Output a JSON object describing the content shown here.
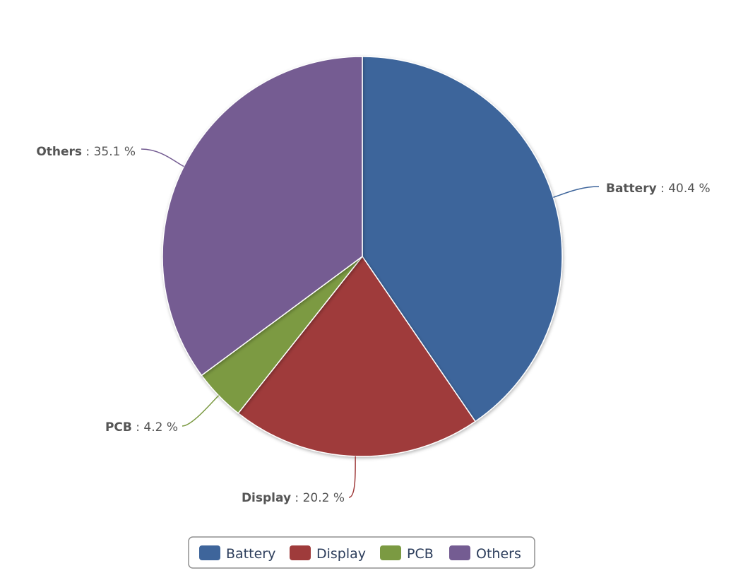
{
  "chart_data": {
    "type": "pie",
    "title": "",
    "categories": [
      "Battery",
      "Display",
      "PCB",
      "Others"
    ],
    "values": [
      40.4,
      20.2,
      4.2,
      35.1
    ],
    "value_labels": [
      "40.4 %",
      "20.2 %",
      "4.2 %",
      "35.1 %"
    ],
    "unit": "%",
    "colors": [
      "#3e659b",
      "#9f3b3b",
      "#7b9a42",
      "#745c92"
    ],
    "start_angle_deg": 0,
    "direction": "clockwise",
    "legend": {
      "position": "bottom-center",
      "items": [
        "Battery",
        "Display",
        "PCB",
        "Others"
      ]
    }
  }
}
